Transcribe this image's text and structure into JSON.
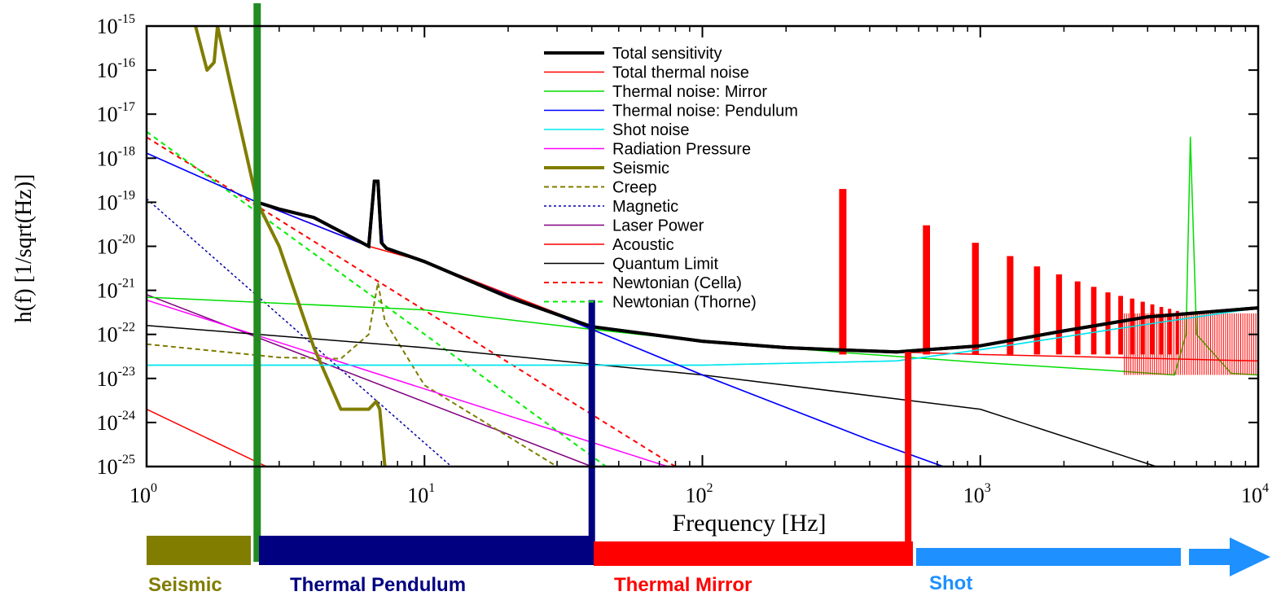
{
  "chart_data": {
    "type": "line",
    "title": "",
    "xlabel": "Frequency   [Hz]",
    "ylabel": "h(f)  [1/sqrt(Hz)]",
    "xscale": "log",
    "yscale": "log",
    "xlim": [
      1,
      10000
    ],
    "ylim": [
      1e-25,
      1e-15
    ],
    "grid": false,
    "legend_position": "top-center",
    "x_ticks": [
      {
        "base": "10",
        "exp": "0",
        "value": 1
      },
      {
        "base": "10",
        "exp": "1",
        "value": 10
      },
      {
        "base": "10",
        "exp": "2",
        "value": 100
      },
      {
        "base": "10",
        "exp": "3",
        "value": 1000
      },
      {
        "base": "10",
        "exp": "4",
        "value": 10000
      }
    ],
    "y_ticks": [
      {
        "base": "10",
        "exp": "-15",
        "value": -15
      },
      {
        "base": "10",
        "exp": "-16",
        "value": -16
      },
      {
        "base": "10",
        "exp": "-17",
        "value": -17
      },
      {
        "base": "10",
        "exp": "-18",
        "value": -18
      },
      {
        "base": "10",
        "exp": "-19",
        "value": -19
      },
      {
        "base": "10",
        "exp": "-20",
        "value": -20
      },
      {
        "base": "10",
        "exp": "-21",
        "value": -21
      },
      {
        "base": "10",
        "exp": "-22",
        "value": -22
      },
      {
        "base": "10",
        "exp": "-23",
        "value": -23
      },
      {
        "base": "10",
        "exp": "-24",
        "value": -24
      },
      {
        "base": "10",
        "exp": "-25",
        "value": -25
      }
    ],
    "series": [
      {
        "name": "Total sensitivity",
        "color": "#000000",
        "width": 4,
        "dash": "",
        "x": [
          2.5,
          3,
          4,
          6.3,
          6.6,
          6.8,
          7.0,
          7.3,
          10,
          20,
          40,
          100,
          200,
          300,
          500,
          1000,
          2000,
          4000,
          10000
        ],
        "y": [
          1e-19,
          7e-20,
          4.5e-20,
          1e-20,
          3e-19,
          3e-19,
          1.2e-20,
          9e-21,
          4.5e-21,
          7e-22,
          1.5e-22,
          7e-23,
          5e-23,
          4.5e-23,
          4e-23,
          5.5e-23,
          1.2e-22,
          2.5e-22,
          4e-22
        ]
      },
      {
        "name": "Total thermal noise",
        "color": "#ff0000",
        "width": 1.5,
        "dash": "",
        "x": [
          2.5,
          6.3,
          10,
          40,
          100,
          300,
          500,
          1000,
          3000,
          10000
        ],
        "y": [
          1e-19,
          1e-20,
          4.5e-21,
          1.5e-22,
          7e-23,
          4.5e-23,
          4e-23,
          3.5e-23,
          3e-23,
          2.5e-23
        ]
      },
      {
        "name": "Thermal noise: Mirror",
        "color": "#00dd00",
        "width": 1.5,
        "dash": "",
        "x": [
          1,
          10,
          40,
          100,
          300,
          1000,
          3000,
          5000,
          5500,
          5700,
          6000,
          8000,
          10000
        ],
        "y": [
          7e-22,
          3.6e-22,
          1.3e-22,
          7e-23,
          4e-23,
          2.3e-23,
          1.5e-23,
          1.2e-23,
          1e-22,
          3e-18,
          1e-22,
          1.3e-23,
          1.2e-23
        ]
      },
      {
        "name": "Thermal noise: Pendulum",
        "color": "#0000ff",
        "width": 1.5,
        "dash": "",
        "x": [
          1,
          2.5,
          6.3,
          6.6,
          6.8,
          7.1,
          10,
          40,
          100,
          400,
          1000
        ],
        "y": [
          1.3e-18,
          1e-19,
          1e-20,
          3e-19,
          3e-19,
          1e-20,
          4.5e-21,
          1.3e-22,
          1.2e-23,
          4e-25,
          5e-26
        ]
      },
      {
        "name": "Shot noise",
        "color": "#00e5ee",
        "width": 1.5,
        "dash": "",
        "x": [
          1,
          100,
          500,
          1000,
          3000,
          10000
        ],
        "y": [
          2e-23,
          2e-23,
          2.5e-23,
          4.5e-23,
          1.3e-22,
          4e-22
        ]
      },
      {
        "name": "Radiation Pressure",
        "color": "#ff00ff",
        "width": 1.5,
        "dash": "",
        "x": [
          1,
          75
        ],
        "y": [
          6e-22,
          1e-25
        ]
      },
      {
        "name": "Seismic",
        "color": "#807d00",
        "width": 4,
        "dash": "",
        "x": [
          1.5,
          1.65,
          1.75,
          1.8,
          2.0,
          2.5,
          3,
          4,
          5,
          6.3,
          6.7,
          6.9,
          7.2
        ],
        "y": [
          1e-15,
          1e-16,
          1.5e-16,
          1e-15,
          5e-17,
          1e-19,
          1e-20,
          5e-23,
          2e-24,
          2e-24,
          3e-24,
          2e-24,
          1e-25
        ]
      },
      {
        "name": "Creep",
        "color": "#807d00",
        "width": 2,
        "dash": "6,4",
        "x": [
          1,
          3,
          5,
          6.3,
          6.8,
          7.2,
          10,
          30
        ],
        "y": [
          6e-23,
          3e-23,
          2.8e-23,
          1e-22,
          1.5e-21,
          2e-22,
          7e-24,
          1e-25
        ]
      },
      {
        "name": "Magnetic",
        "color": "#0000aa",
        "width": 1.5,
        "dash": "3,3",
        "x": [
          1,
          12.5
        ],
        "y": [
          1.2e-19,
          1e-25
        ]
      },
      {
        "name": "Laser Power",
        "color": "#800080",
        "width": 1.5,
        "dash": "",
        "x": [
          1,
          40
        ],
        "y": [
          8e-22,
          1e-25
        ]
      },
      {
        "name": "Acoustic",
        "color": "#ff0000",
        "width": 1.5,
        "dash": "",
        "x": [
          1,
          2.7
        ],
        "y": [
          2e-24,
          1e-25
        ]
      },
      {
        "name": "Quantum Limit",
        "color": "#000000",
        "width": 1.5,
        "dash": "",
        "x": [
          1,
          10,
          100,
          1000,
          4300
        ],
        "y": [
          1.6e-22,
          5e-23,
          1.2e-23,
          2e-24,
          1e-25
        ]
      },
      {
        "name": "Newtonian (Cella)",
        "color": "#ff0000",
        "width": 2,
        "dash": "6,5",
        "x": [
          1,
          80
        ],
        "y": [
          3e-18,
          1e-25
        ]
      },
      {
        "name": "Newtonian (Thorne)",
        "color": "#00ee00",
        "width": 2,
        "dash": "6,5",
        "x": [
          1,
          45
        ],
        "y": [
          4e-18,
          1e-25
        ]
      }
    ],
    "annotations": {
      "violin_resonances": {
        "color": "#ff0000",
        "peaks": [
          {
            "x": 320,
            "y": 2e-19
          },
          {
            "x": 640,
            "y": 3e-20
          },
          {
            "x": 960,
            "y": 1.2e-20
          },
          {
            "x": 1280,
            "y": 6e-21
          },
          {
            "x": 1600,
            "y": 3.5e-21
          },
          {
            "x": 1920,
            "y": 2.3e-21
          },
          {
            "x": 2240,
            "y": 1.6e-21
          },
          {
            "x": 2560,
            "y": 1.2e-21
          },
          {
            "x": 2880,
            "y": 9e-22
          },
          {
            "x": 3200,
            "y": 7.5e-22
          },
          {
            "x": 3520,
            "y": 6.5e-22
          },
          {
            "x": 3840,
            "y": 5.5e-22
          },
          {
            "x": 4160,
            "y": 4.8e-22
          },
          {
            "x": 4480,
            "y": 4.2e-22
          },
          {
            "x": 4800,
            "y": 3.8e-22
          },
          {
            "x": 5120,
            "y": 3.4e-22
          }
        ]
      },
      "region_boundaries": [
        {
          "name": "Seismic",
          "x": 2.5,
          "color": "#228b22"
        },
        {
          "name": "Thermal Pendulum",
          "x": 40,
          "color": "#000080"
        },
        {
          "name": "Thermal Mirror",
          "x": 550,
          "color": "#ff0000"
        }
      ]
    }
  },
  "regions": [
    {
      "label": "Seismic",
      "color": "#807d00"
    },
    {
      "label": "Thermal Pendulum",
      "color": "#000080"
    },
    {
      "label": "Thermal Mirror",
      "color": "#ff0000"
    },
    {
      "label": "Shot",
      "color": "#1e90ff"
    }
  ]
}
